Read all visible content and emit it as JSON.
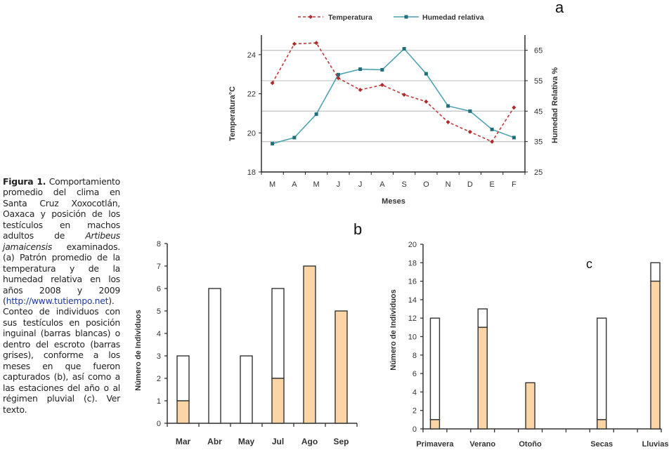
{
  "caption": {
    "figure_label": "Figura 1.",
    "text_1": " Comportamiento promedio del clima en Santa Cruz Xoxocotlán, Oaxaca y posición de los testículos en machos adultos de ",
    "species": "Artibeus jamaicensis",
    "text_2": " examinados. (a) Patrón promedio de la temperatura y de la humedad relativa en los años 2008 y 2009 (",
    "link": "http://www.tutiempo.net",
    "text_3": "). Conteo de individuos con sus testículos en posición inguinal (barras blancas) o dentro del escroto (barras grises), conforme a los meses en que fueron capturados (b), así como a las estaciones del año o al régimen pluvial (c). Ver texto."
  },
  "colors": {
    "temperature": "#c0393b",
    "humidity": "#4fa3b0",
    "humidity_marker": "#1f6e78",
    "scrotal_bar": "#fbd5a5",
    "inguinal_bar": "#ffffff",
    "gridline": "#c8c8c8",
    "axis": "#222222"
  },
  "chart_data": [
    {
      "id": "a",
      "panel_label": "a",
      "type": "line",
      "xlabel": "Meses",
      "ylabel_left": "Temperatura°C",
      "ylabel_right": "Humedad Relativa %",
      "categories": [
        "M",
        "A",
        "M",
        "J",
        "J",
        "A",
        "S",
        "O",
        "N",
        "D",
        "E",
        "F"
      ],
      "ylim_left": [
        18,
        25
      ],
      "yticks_left": [
        18,
        20,
        22,
        24
      ],
      "ylim_right": [
        25,
        70
      ],
      "yticks_right": [
        25,
        35,
        45,
        55,
        65
      ],
      "grid": "horizontal at right-axis ticks 35, 45, 55, 65",
      "legend": "top",
      "series": [
        {
          "name": "Temperatura",
          "axis": "left",
          "style": "dashed, diamond markers",
          "values": [
            22.55,
            24.55,
            24.6,
            22.8,
            22.2,
            22.45,
            21.95,
            21.6,
            20.55,
            20.05,
            19.55,
            21.3
          ]
        },
        {
          "name": "Humedad relativa",
          "axis": "right",
          "style": "solid, square markers",
          "values": [
            34.3,
            36.3,
            44.0,
            57.0,
            58.8,
            58.6,
            65.5,
            57.3,
            46.7,
            45.0,
            39.0,
            36.3
          ]
        }
      ]
    },
    {
      "id": "b",
      "panel_label": "b",
      "type": "bar",
      "stacked": true,
      "xlabel": "",
      "ylabel": "Número de Individuos",
      "categories": [
        "Mar",
        "Abr",
        "May",
        "Jul",
        "Ago",
        "Sep"
      ],
      "ylim": [
        0,
        8
      ],
      "yticks": [
        0,
        1,
        2,
        3,
        4,
        5,
        6,
        7,
        8
      ],
      "series": [
        {
          "name": "escroto",
          "values": [
            1,
            0,
            0,
            2,
            7,
            5
          ]
        },
        {
          "name": "inguinal",
          "values": [
            2,
            6,
            3,
            4,
            0,
            0
          ]
        }
      ]
    },
    {
      "id": "c",
      "panel_label": "c",
      "type": "bar",
      "stacked": true,
      "xlabel": "",
      "ylabel": "Número de Individuos",
      "categories": [
        "Primavera",
        "Verano",
        "Otoño",
        "",
        "Secas",
        "Lluvias"
      ],
      "ylim": [
        0,
        20
      ],
      "yticks": [
        0,
        2,
        4,
        6,
        8,
        10,
        12,
        14,
        16,
        18,
        20
      ],
      "series": [
        {
          "name": "escroto",
          "values": [
            1,
            11,
            5,
            0,
            1,
            16
          ]
        },
        {
          "name": "inguinal",
          "values": [
            11,
            2,
            0,
            0,
            11,
            2
          ]
        }
      ]
    }
  ]
}
